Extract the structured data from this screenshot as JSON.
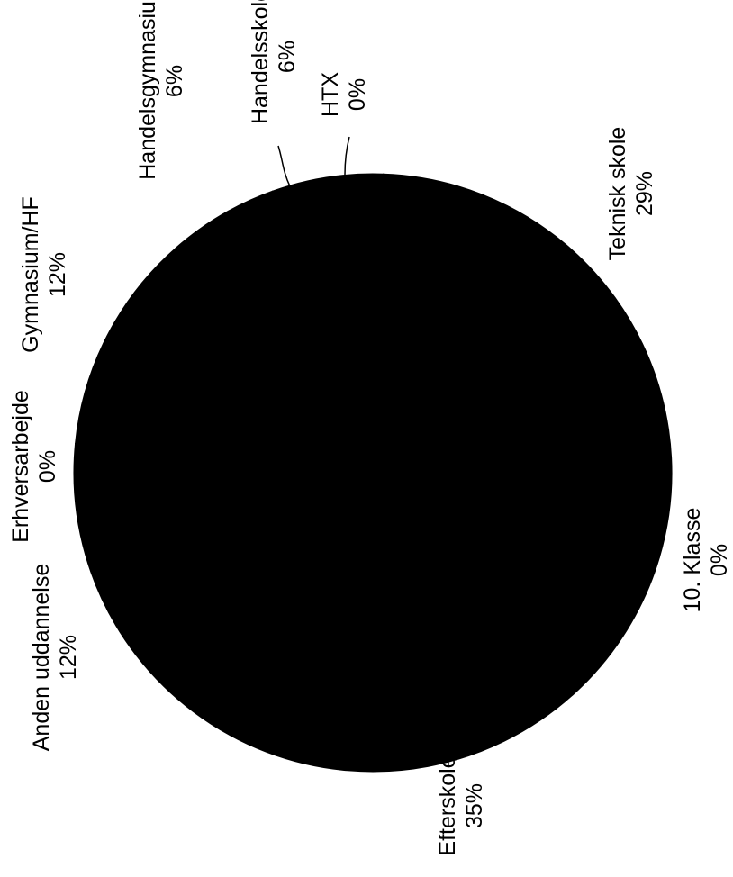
{
  "chart_data": {
    "type": "pie",
    "title": "",
    "slices": [
      {
        "label": "Teknisk skole",
        "value_label": "29%",
        "value": 29
      },
      {
        "label": "10. Klasse",
        "value_label": "0%",
        "value": 0
      },
      {
        "label": "Efterskole",
        "value_label": "35%",
        "value": 35
      },
      {
        "label": "Anden uddannelse",
        "value_label": "12%",
        "value": 12
      },
      {
        "label": "Erhversarbejde",
        "value_label": "0%",
        "value": 0
      },
      {
        "label": "Gymnasium/HF",
        "value_label": "12%",
        "value": 12
      },
      {
        "label": "Handelsgymnasium",
        "value_label": "6%",
        "value": 6
      },
      {
        "label": "Handelsskole",
        "value_label": "6%",
        "value": 6
      },
      {
        "label": "HTX",
        "value_label": "0%",
        "value": 0
      }
    ],
    "legend": "none",
    "slice_color": "#000000",
    "label_color": "#000000",
    "background": "#ffffff"
  }
}
